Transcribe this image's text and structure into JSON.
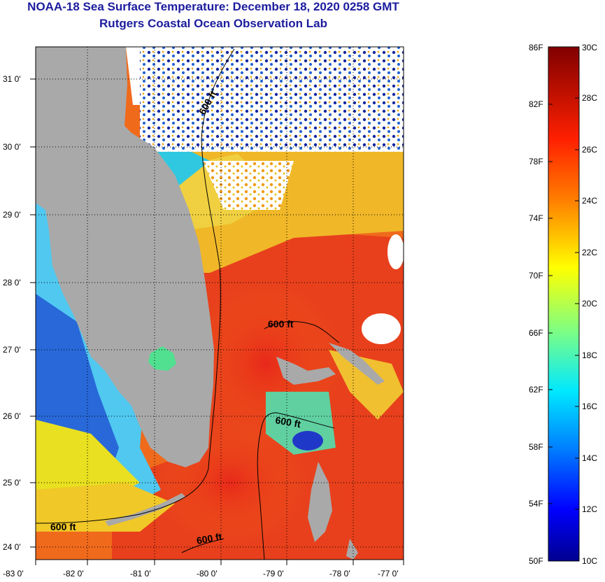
{
  "title": {
    "line1": "NOAA-18 Sea Surface Temperature:  December 18, 2020 0258 GMT",
    "line2": "Rutgers Coastal Ocean Observation Lab"
  },
  "map": {
    "x_ticks": [
      "-83 0'",
      "-82 0'",
      "-81 0'",
      "-80 0'",
      "-79 0'",
      "-78 0'",
      "-77 0'"
    ],
    "y_ticks": [
      "31 0'",
      "30 0'",
      "29 0'",
      "28 0'",
      "27 0'",
      "26 0'",
      "25 0'",
      "24 0'"
    ],
    "contour_label": "600 ft"
  },
  "colorbar": {
    "f_labels": [
      "86F",
      "82F",
      "78F",
      "74F",
      "70F",
      "66F",
      "62F",
      "58F",
      "54F",
      "50F"
    ],
    "c_labels": [
      "30C",
      "28C",
      "26C",
      "24C",
      "22C",
      "20C",
      "18C",
      "16C",
      "14C",
      "12C",
      "10C"
    ]
  },
  "colors": {
    "title": "#1c1c9e",
    "land": "#a9a9a9",
    "cloud": "#ffffff"
  }
}
